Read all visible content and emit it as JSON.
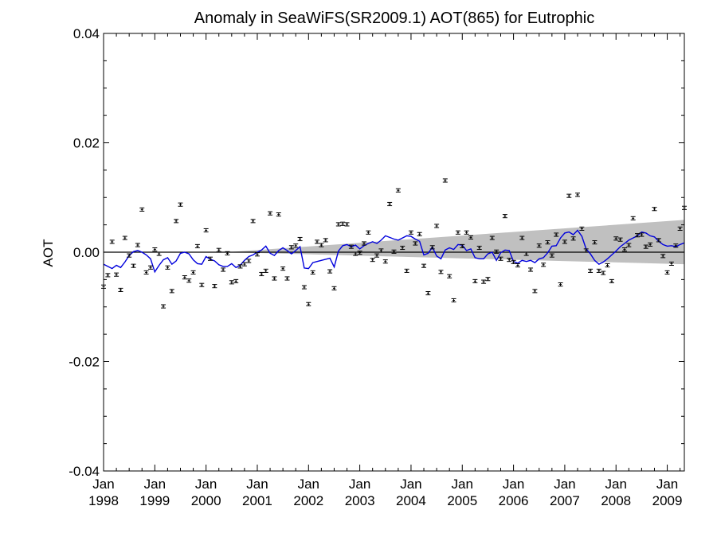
{
  "chart_data": {
    "type": "scatter",
    "title": "Anomaly in SeaWiFS(SR2009.1) AOT(865) for Eutrophic",
    "xlabel": "",
    "ylabel": "AOT",
    "xlim": [
      "1998-01",
      "2009-05"
    ],
    "ylim": [
      -0.04,
      0.04
    ],
    "y_ticks": [
      "0.04",
      "0.02",
      "0.00",
      "-0.02",
      "-0.04"
    ],
    "x_ticks": [
      {
        "month": "Jan",
        "year": "1998"
      },
      {
        "month": "Jan",
        "year": "1999"
      },
      {
        "month": "Jan",
        "year": "2000"
      },
      {
        "month": "Jan",
        "year": "2001"
      },
      {
        "month": "Jan",
        "year": "2002"
      },
      {
        "month": "Jan",
        "year": "2003"
      },
      {
        "month": "Jan",
        "year": "2004"
      },
      {
        "month": "Jan",
        "year": "2005"
      },
      {
        "month": "Jan",
        "year": "2006"
      },
      {
        "month": "Jan",
        "year": "2007"
      },
      {
        "month": "Jan",
        "year": "2008"
      },
      {
        "month": "Jan",
        "year": "2009"
      }
    ],
    "grid": false,
    "legend": "none",
    "colors": {
      "points": "#000000",
      "running_mean": "#0000dd",
      "trend_band": "#c0c0c0",
      "zero_line": "#000000"
    },
    "zero_line": 0,
    "trend_band": {
      "x": [
        "1998-01",
        "2000-06",
        "2009-05"
      ],
      "upper": [
        0.0,
        0.0,
        0.0059
      ],
      "lower": [
        0.0,
        0.0,
        -0.0022
      ]
    },
    "series": [
      {
        "kind": "monthly_anomaly_with_error_bars",
        "start": "1998-01",
        "error": 0.0003,
        "y": [
          -0.0063,
          -0.0042,
          0.0019,
          -0.0041,
          -0.0069,
          0.0026,
          -0.0006,
          -0.0025,
          0.0013,
          0.0078,
          -0.0037,
          -0.0028,
          0.0005,
          -0.0003,
          -0.0099,
          -0.0028,
          -0.0071,
          0.0057,
          0.0087,
          -0.0046,
          -0.0052,
          -0.0037,
          0.0011,
          -0.006,
          0.004,
          -0.0012,
          -0.0062,
          0.0004,
          -0.0032,
          -0.0002,
          -0.0055,
          -0.0053,
          -0.0026,
          -0.0022,
          -0.0016,
          0.0057,
          -0.0004,
          -0.004,
          -0.0034,
          0.0071,
          -0.0048,
          0.0069,
          -0.003,
          -0.0048,
          0.0009,
          0.0012,
          0.0024,
          -0.0064,
          -0.0095,
          -0.0037,
          0.0019,
          0.0013,
          0.0022,
          -0.0035,
          -0.0066,
          0.0051,
          0.0052,
          0.0051,
          0.001,
          -0.0003,
          -0.0001,
          0.0016,
          0.0036,
          -0.0014,
          -0.0006,
          0.0003,
          -0.0017,
          0.0088,
          0.0001,
          0.0113,
          0.0008,
          -0.0034,
          0.0036,
          0.0016,
          0.0033,
          -0.0025,
          -0.0075,
          0.0009,
          0.0048,
          -0.0036,
          0.0131,
          -0.0044,
          -0.0088,
          0.0036,
          0.0011,
          0.0036,
          0.0027,
          -0.0053,
          0.0008,
          -0.0054,
          -0.0049,
          0.0026,
          0.0001,
          -0.0012,
          0.0066,
          -0.0014,
          -0.0018,
          -0.0024,
          0.0026,
          -0.0003,
          -0.0032,
          -0.0071,
          0.0012,
          -0.0023,
          0.0018,
          -0.0006,
          0.0032,
          -0.0059,
          0.0019,
          0.0103,
          0.0025,
          0.0105,
          0.0043,
          0.0003,
          -0.0034,
          0.0018,
          -0.0034,
          -0.0038,
          -0.0024,
          -0.0053,
          0.0025,
          0.0023,
          0.0005,
          0.0013,
          0.0062,
          0.0031,
          0.0032,
          0.001,
          0.0014,
          0.0079,
          0.0022,
          -0.0007,
          -0.0037,
          -0.0021,
          0.0012,
          0.0043,
          0.0081
        ]
      },
      {
        "kind": "running_mean",
        "start": "1998-01",
        "y": [
          -0.0022,
          -0.0026,
          -0.003,
          -0.0024,
          -0.0028,
          -0.0018,
          -0.0006,
          0.0001,
          0.0003,
          0.0,
          -0.0005,
          -0.0012,
          -0.0036,
          -0.0024,
          -0.0014,
          -0.001,
          -0.0022,
          -0.0016,
          -0.0002,
          0.0,
          -0.0003,
          -0.0014,
          -0.0021,
          -0.0022,
          -0.0008,
          -0.0013,
          -0.0016,
          -0.0023,
          -0.0026,
          -0.0026,
          -0.0021,
          -0.0028,
          -0.0024,
          -0.0015,
          -0.0008,
          -0.0005,
          0.0,
          0.0004,
          0.0011,
          -0.0002,
          -0.0006,
          0.0003,
          0.0008,
          0.0003,
          -0.0003,
          0.0003,
          0.001,
          -0.0029,
          -0.003,
          -0.0019,
          -0.0017,
          -0.0015,
          -0.0013,
          -0.0011,
          -0.0027,
          0.0002,
          0.0012,
          0.0014,
          0.001,
          0.0013,
          0.0006,
          0.0012,
          0.0016,
          0.0019,
          0.0016,
          0.0022,
          0.003,
          0.0027,
          0.0024,
          0.0022,
          0.0026,
          0.003,
          0.0029,
          0.0024,
          0.002,
          -0.0005,
          -0.0002,
          0.0009,
          -0.0007,
          -0.0012,
          0.0004,
          0.0008,
          0.0005,
          0.0014,
          0.0013,
          0.0003,
          0.0006,
          -0.001,
          -0.0012,
          -0.0012,
          -0.0003,
          0.0,
          -0.0015,
          -0.0001,
          0.0004,
          0.0003,
          -0.0017,
          -0.002,
          -0.0015,
          -0.0017,
          -0.0015,
          -0.0019,
          -0.0012,
          -0.001,
          -0.0001,
          0.0011,
          0.0012,
          0.0026,
          0.0035,
          0.0037,
          0.0032,
          0.004,
          0.0029,
          0.0006,
          -0.0003,
          -0.0015,
          -0.0022,
          -0.0018,
          -0.0012,
          -0.0005,
          0.0002,
          0.001,
          0.0016,
          0.0022,
          0.0026,
          0.003,
          0.0037,
          0.0035,
          0.003,
          0.0028,
          0.002,
          0.0014,
          0.0011,
          0.0012,
          0.001,
          0.0014,
          0.0017
        ]
      }
    ]
  }
}
